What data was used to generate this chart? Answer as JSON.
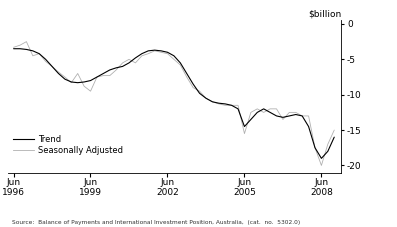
{
  "title_right": "$billion",
  "source_text": "Source:  Balance of Payments and International Investment Position, Australia,  (cat.  no.  5302.0)",
  "legend_entries": [
    "Trend",
    "Seasonally Adjusted"
  ],
  "trend_color": "#000000",
  "seasonal_color": "#b0b0b0",
  "ylim": [
    -21,
    0.5
  ],
  "yticks": [
    0,
    -5,
    -10,
    -15,
    -20
  ],
  "xlim_start": 1996.2,
  "xlim_end": 2009.2,
  "xtick_positions": [
    1996.417,
    1999.417,
    2002.417,
    2005.417,
    2008.417
  ],
  "trend_x": [
    1996.42,
    1996.67,
    1996.92,
    1997.17,
    1997.42,
    1997.67,
    1997.92,
    1998.17,
    1998.42,
    1998.67,
    1998.92,
    1999.17,
    1999.42,
    1999.67,
    1999.92,
    2000.17,
    2000.42,
    2000.67,
    2000.92,
    2001.17,
    2001.42,
    2001.67,
    2001.92,
    2002.17,
    2002.42,
    2002.67,
    2002.92,
    2003.17,
    2003.42,
    2003.67,
    2003.92,
    2004.17,
    2004.42,
    2004.67,
    2004.92,
    2005.17,
    2005.42,
    2005.67,
    2005.92,
    2006.17,
    2006.42,
    2006.67,
    2006.92,
    2007.17,
    2007.42,
    2007.67,
    2007.92,
    2008.17,
    2008.42,
    2008.67,
    2008.92
  ],
  "trend_y": [
    -3.5,
    -3.5,
    -3.6,
    -3.8,
    -4.2,
    -5.0,
    -6.0,
    -7.0,
    -7.8,
    -8.2,
    -8.3,
    -8.2,
    -8.0,
    -7.5,
    -7.0,
    -6.5,
    -6.2,
    -6.0,
    -5.5,
    -4.8,
    -4.2,
    -3.8,
    -3.7,
    -3.8,
    -4.0,
    -4.5,
    -5.5,
    -7.0,
    -8.5,
    -9.8,
    -10.5,
    -11.0,
    -11.2,
    -11.3,
    -11.5,
    -12.0,
    -14.5,
    -13.5,
    -12.5,
    -12.0,
    -12.5,
    -13.0,
    -13.2,
    -13.0,
    -12.8,
    -13.0,
    -14.5,
    -17.5,
    -19.0,
    -18.0,
    -16.0
  ],
  "seasonal_x": [
    1996.42,
    1996.67,
    1996.92,
    1997.17,
    1997.42,
    1997.67,
    1997.92,
    1998.17,
    1998.42,
    1998.67,
    1998.92,
    1999.17,
    1999.42,
    1999.67,
    1999.92,
    2000.17,
    2000.42,
    2000.67,
    2000.92,
    2001.17,
    2001.42,
    2001.67,
    2001.92,
    2002.17,
    2002.42,
    2002.67,
    2002.92,
    2003.17,
    2003.42,
    2003.67,
    2003.92,
    2004.17,
    2004.42,
    2004.67,
    2004.92,
    2005.17,
    2005.42,
    2005.67,
    2005.92,
    2006.17,
    2006.42,
    2006.67,
    2006.92,
    2007.17,
    2007.42,
    2007.67,
    2007.92,
    2008.17,
    2008.42,
    2008.67,
    2008.92
  ],
  "seasonal_y": [
    -3.3,
    -3.0,
    -2.5,
    -4.5,
    -4.2,
    -5.3,
    -6.0,
    -6.8,
    -7.5,
    -8.3,
    -7.0,
    -8.8,
    -9.5,
    -7.5,
    -7.3,
    -7.3,
    -6.5,
    -5.5,
    -5.0,
    -5.5,
    -4.5,
    -4.2,
    -3.8,
    -4.0,
    -4.2,
    -5.0,
    -5.8,
    -7.5,
    -9.0,
    -9.5,
    -10.5,
    -11.0,
    -11.3,
    -11.5,
    -11.5,
    -11.5,
    -15.5,
    -12.5,
    -12.0,
    -12.5,
    -12.0,
    -12.0,
    -13.5,
    -12.5,
    -12.5,
    -13.0,
    -13.0,
    -17.5,
    -20.0,
    -17.0,
    -15.0
  ]
}
